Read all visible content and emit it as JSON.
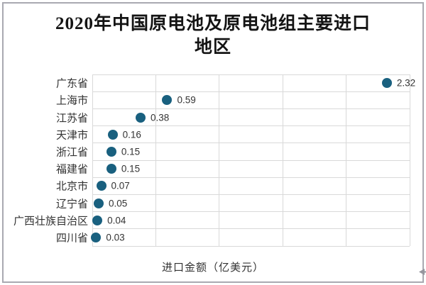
{
  "title": {
    "line1": "2020年中国原电池及原电池组主要进口",
    "line2": "地区"
  },
  "chart_data": {
    "type": "scatter",
    "orientation": "horizontal",
    "title": "2020年中国原电池及原电池组主要进口地区",
    "categories": [
      "广东省",
      "上海市",
      "江苏省",
      "天津市",
      "浙江省",
      "福建省",
      "北京市",
      "辽宁省",
      "广西壮族自治区",
      "四川省"
    ],
    "values": [
      2.32,
      0.59,
      0.38,
      0.16,
      0.15,
      0.15,
      0.07,
      0.05,
      0.04,
      0.03
    ],
    "xlabel": "进口金额（亿美元）",
    "ylabel": "",
    "xlim": [
      0,
      2.5
    ],
    "x_grid_intervals": 5,
    "grid": true,
    "legend": "none",
    "dot_color": "#19607f",
    "grid_color": "#d9d9d9",
    "value_decimals": 2
  }
}
